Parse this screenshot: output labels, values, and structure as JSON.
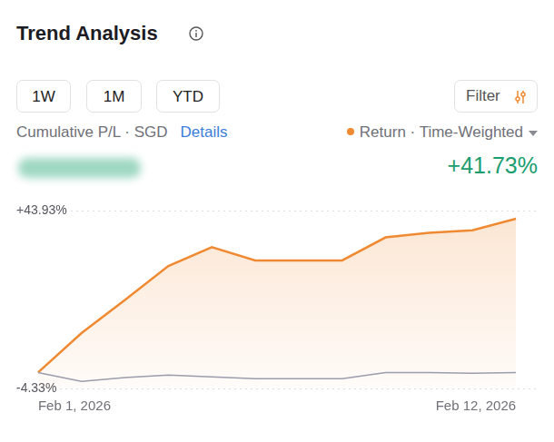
{
  "header": {
    "title": "Trend Analysis",
    "periods": [
      "1W",
      "1M",
      "YTD"
    ],
    "filter": "Filter",
    "metric": "Cumulative P/L · SGD",
    "details": "Details",
    "return_value": "+41.73%"
  },
  "chart_data": {
    "type": "line",
    "categories": [
      "Feb 1, 2026",
      null,
      null,
      null,
      null,
      null,
      null,
      null,
      null,
      null,
      null,
      "Feb 12, 2026"
    ],
    "series": [
      {
        "name": "Return · Time-Weighted",
        "type": "area",
        "color": "#f08a32",
        "values": [
          0,
          10.7,
          19.7,
          28.9,
          34.0,
          30.4,
          30.4,
          30.4,
          36.65,
          37.9,
          38.6,
          41.73
        ]
      },
      {
        "type": "line",
        "color": "#9c9dab",
        "values": [
          0,
          -2.4,
          -1.4,
          -0.7,
          -1.2,
          -1.7,
          -1.7,
          -1.7,
          0,
          0,
          -0.2,
          0
        ]
      }
    ],
    "ylim": [
      -4.33,
      43.93
    ],
    "yticks": [
      {
        "value": -4.33,
        "label": "-4.33%"
      },
      {
        "value": 43.93,
        "label": "+43.93%"
      }
    ],
    "grid": true
  }
}
